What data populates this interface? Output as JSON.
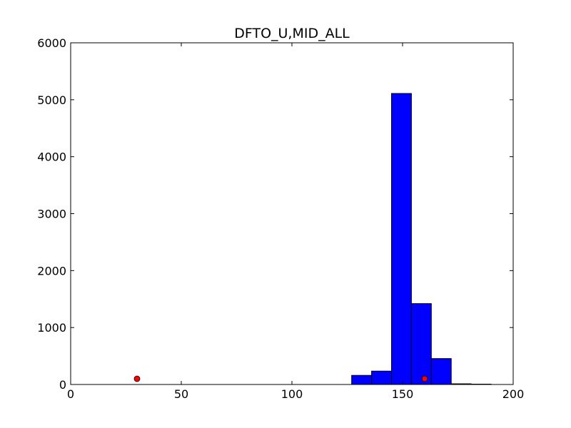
{
  "chart_data": {
    "type": "bar",
    "title": "DFTO_U,MID_ALL",
    "xlabel": "",
    "ylabel": "",
    "xlim": [
      0,
      200
    ],
    "ylim": [
      0,
      6000
    ],
    "xticks": [
      0,
      50,
      100,
      150,
      200
    ],
    "yticks": [
      0,
      1000,
      2000,
      3000,
      4000,
      5000,
      6000
    ],
    "bins": [
      {
        "x0": 19,
        "x1": 28,
        "value": 0
      },
      {
        "x0": 28,
        "x1": 37,
        "value": 0
      },
      {
        "x0": 37,
        "x1": 46,
        "value": 0
      },
      {
        "x0": 46,
        "x1": 55,
        "value": 0
      },
      {
        "x0": 55,
        "x1": 64,
        "value": 0
      },
      {
        "x0": 64,
        "x1": 73,
        "value": 0
      },
      {
        "x0": 73,
        "x1": 82,
        "value": 0
      },
      {
        "x0": 82,
        "x1": 91,
        "value": 0
      },
      {
        "x0": 91,
        "x1": 100,
        "value": 0
      },
      {
        "x0": 100,
        "x1": 109,
        "value": 0
      },
      {
        "x0": 109,
        "x1": 118,
        "value": 0
      },
      {
        "x0": 118,
        "x1": 127,
        "value": 0
      },
      {
        "x0": 127,
        "x1": 136,
        "value": 160
      },
      {
        "x0": 136,
        "x1": 145,
        "value": 235
      },
      {
        "x0": 145,
        "x1": 154,
        "value": 5110
      },
      {
        "x0": 154,
        "x1": 163,
        "value": 1420
      },
      {
        "x0": 163,
        "x1": 172,
        "value": 455
      },
      {
        "x0": 172,
        "x1": 181,
        "value": 12
      },
      {
        "x0": 181,
        "x1": 190,
        "value": 6
      }
    ],
    "points": [
      {
        "x": 30,
        "y": 100
      },
      {
        "x": 160,
        "y": 100
      }
    ],
    "colors": {
      "bar_fill": "#0000ff",
      "bar_edge": "#000000",
      "point_fill": "#ff0000",
      "point_edge": "#000000"
    },
    "grid": false
  }
}
